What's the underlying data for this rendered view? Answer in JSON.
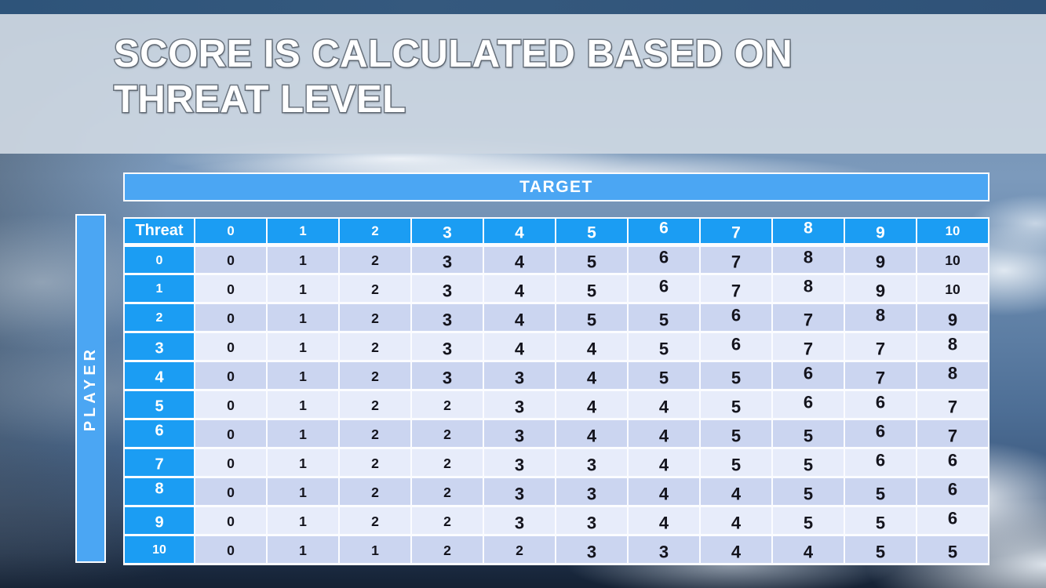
{
  "slide": {
    "title_lines": [
      "SCORE IS CALCULATED BASED ON",
      "THREAT LEVEL"
    ]
  },
  "matrix": {
    "target_label": "TARGET",
    "player_label": "PLAYER",
    "corner_label": "Threat",
    "col_headers": [
      "0",
      "1",
      "2",
      "3",
      "4",
      "5",
      "6",
      "7",
      "8",
      "9",
      "10"
    ],
    "rows": [
      {
        "label": "0",
        "values": [
          "0",
          "1",
          "2",
          "3",
          "4",
          "5",
          "6",
          "7",
          "8",
          "9",
          "10"
        ]
      },
      {
        "label": "1",
        "values": [
          "0",
          "1",
          "2",
          "3",
          "4",
          "5",
          "6",
          "7",
          "8",
          "9",
          "10"
        ]
      },
      {
        "label": "2",
        "values": [
          "0",
          "1",
          "2",
          "3",
          "4",
          "5",
          "5",
          "6",
          "7",
          "8",
          "9"
        ]
      },
      {
        "label": "3",
        "values": [
          "0",
          "1",
          "2",
          "3",
          "4",
          "4",
          "5",
          "6",
          "7",
          "7",
          "8"
        ]
      },
      {
        "label": "4",
        "values": [
          "0",
          "1",
          "2",
          "3",
          "3",
          "4",
          "5",
          "5",
          "6",
          "7",
          "8"
        ]
      },
      {
        "label": "5",
        "values": [
          "0",
          "1",
          "2",
          "2",
          "3",
          "4",
          "4",
          "5",
          "6",
          "6",
          "7"
        ]
      },
      {
        "label": "6",
        "values": [
          "0",
          "1",
          "2",
          "2",
          "3",
          "4",
          "4",
          "5",
          "5",
          "6",
          "7"
        ]
      },
      {
        "label": "7",
        "values": [
          "0",
          "1",
          "2",
          "2",
          "3",
          "3",
          "4",
          "5",
          "5",
          "6",
          "6"
        ]
      },
      {
        "label": "8",
        "values": [
          "0",
          "1",
          "2",
          "2",
          "3",
          "3",
          "4",
          "4",
          "5",
          "5",
          "6"
        ]
      },
      {
        "label": "9",
        "values": [
          "0",
          "1",
          "2",
          "2",
          "3",
          "3",
          "4",
          "4",
          "5",
          "5",
          "6"
        ]
      },
      {
        "label": "10",
        "values": [
          "0",
          "1",
          "1",
          "2",
          "2",
          "3",
          "3",
          "4",
          "4",
          "5",
          "5"
        ]
      }
    ]
  },
  "colors": {
    "header_cell_blue": "#1b9df3",
    "axis_bar_blue": "#4ba6f3",
    "row_band_dark": "#cbd5f0",
    "row_band_light": "#e7ecfa",
    "cell_border_white": "#fbfcff",
    "number_ink": "#14141d",
    "title_text": "#ffffff",
    "title_outline": "#6d7681",
    "top_strip": "#2e547a",
    "title_band": "#ced7e2"
  }
}
